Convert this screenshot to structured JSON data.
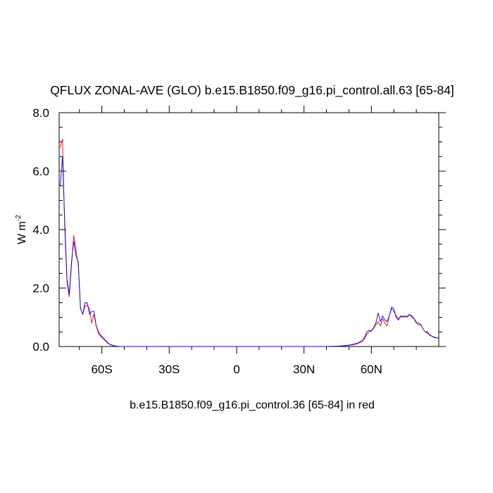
{
  "chart_data": {
    "type": "line",
    "title": "QFLUX ZONAL-AVE (GLO) b.e15.B1850.f09_g16.pi_control.all.63 [65-84]",
    "ylabel": "W m",
    "ylabel_superscript": "-2",
    "xlabel": "b.e15.B1850.f09_g16.pi_control.36 [65-84] in red",
    "xlim": [
      -79,
      90
    ],
    "ylim": [
      0,
      8
    ],
    "x_ticks": [
      {
        "value": -60,
        "label": "60S"
      },
      {
        "value": -30,
        "label": "30S"
      },
      {
        "value": 0,
        "label": "0"
      },
      {
        "value": 30,
        "label": "30N"
      },
      {
        "value": 60,
        "label": "60N"
      }
    ],
    "y_ticks": [
      {
        "value": 0,
        "label": "0.0"
      },
      {
        "value": 2,
        "label": "2.0"
      },
      {
        "value": 4,
        "label": "4.0"
      },
      {
        "value": 6,
        "label": "6.0"
      },
      {
        "value": 8,
        "label": "8.0"
      }
    ],
    "grid": false,
    "series": [
      {
        "color": "#ff0000",
        "x": [
          -78.5,
          -77.5,
          -76.5,
          -75.5,
          -74.5,
          -73.5,
          -72.5,
          -71.5,
          -70.5,
          -69.5,
          -68.5,
          -67.5,
          -66.5,
          -65.5,
          -64.5,
          -63.5,
          -62.5,
          -61.5,
          -60.5,
          -59.5,
          -58.5,
          -57.5,
          -56.5,
          -55.5,
          -54.5,
          -53.5,
          -52,
          -50,
          -45,
          0,
          40,
          45,
          48,
          50,
          52,
          54,
          56,
          57,
          58,
          59,
          60,
          61,
          62,
          63,
          64,
          65,
          66,
          67,
          68,
          69,
          70,
          71,
          72,
          73,
          74,
          75,
          76,
          77,
          78,
          79,
          80,
          81,
          82,
          83,
          84,
          85,
          86,
          87,
          88,
          89,
          90
        ],
        "y": [
          6.8,
          7.1,
          4.0,
          2.2,
          1.7,
          2.8,
          3.8,
          3.3,
          2.8,
          1.3,
          1.1,
          1.4,
          1.4,
          1.3,
          0.8,
          1.1,
          0.7,
          0.45,
          0.35,
          0.28,
          0.2,
          0.12,
          0.07,
          0.04,
          0.02,
          0.01,
          0.0,
          0.0,
          0.0,
          0.0,
          0.0,
          0.01,
          0.02,
          0.04,
          0.06,
          0.1,
          0.18,
          0.28,
          0.42,
          0.5,
          0.55,
          0.62,
          0.75,
          0.85,
          0.7,
          0.95,
          0.8,
          0.7,
          1.05,
          1.3,
          1.2,
          1.05,
          0.95,
          1.0,
          1.05,
          1.0,
          1.05,
          1.1,
          1.0,
          0.95,
          0.85,
          0.8,
          0.75,
          0.6,
          0.5,
          0.45,
          0.4,
          0.35,
          0.32,
          0.3,
          0.28
        ]
      },
      {
        "color": "#0000ff",
        "x": [
          -78.5,
          -77.5,
          -76.5,
          -75.5,
          -74.5,
          -73.5,
          -72.5,
          -71.5,
          -70.5,
          -69.5,
          -68.5,
          -67.5,
          -66.5,
          -65.5,
          -64.5,
          -63.5,
          -62.5,
          -61.5,
          -60.5,
          -59.5,
          -58.5,
          -57.5,
          -56.5,
          -55.5,
          -54.5,
          -53.5,
          -52,
          -50,
          -45,
          0,
          40,
          45,
          48,
          50,
          52,
          54,
          56,
          57,
          58,
          59,
          60,
          61,
          62,
          63,
          64,
          65,
          66,
          67,
          68,
          69,
          70,
          71,
          72,
          73,
          74,
          75,
          76,
          77,
          78,
          79,
          80,
          81,
          82,
          83,
          84,
          85,
          86,
          87,
          88,
          89,
          90
        ],
        "y": [
          5.5,
          6.5,
          4.2,
          2.3,
          1.8,
          2.9,
          3.6,
          3.1,
          2.9,
          1.3,
          1.1,
          1.5,
          1.5,
          1.1,
          1.2,
          1.2,
          0.7,
          0.5,
          0.38,
          0.3,
          0.22,
          0.14,
          0.08,
          0.05,
          0.03,
          0.01,
          0.0,
          0.0,
          0.0,
          0.0,
          0.0,
          0.01,
          0.03,
          0.05,
          0.08,
          0.12,
          0.2,
          0.32,
          0.5,
          0.55,
          0.52,
          0.65,
          0.8,
          1.15,
          0.85,
          1.05,
          0.9,
          0.85,
          1.05,
          1.35,
          1.3,
          1.0,
          0.9,
          1.05,
          1.0,
          1.05,
          1.0,
          1.1,
          1.05,
          0.95,
          0.8,
          0.75,
          0.75,
          0.6,
          0.5,
          0.5,
          0.38,
          0.35,
          0.3,
          0.3,
          0.28
        ]
      }
    ]
  }
}
